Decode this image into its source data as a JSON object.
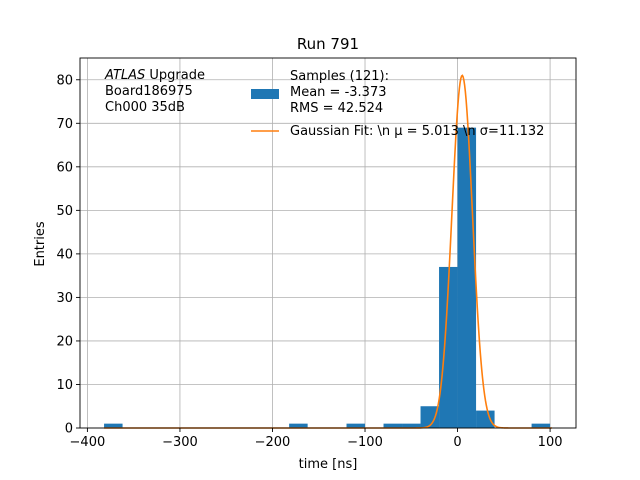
{
  "chart_data": {
    "type": "bar",
    "title": "Run 791",
    "xlabel": "time [ns]",
    "ylabel": "Entries",
    "xlim": [
      -408,
      128
    ],
    "ylim": [
      0,
      85
    ],
    "grid": true,
    "xticks": [
      -400,
      -300,
      -200,
      -100,
      0,
      100
    ],
    "xtick_labels": [
      "−400",
      "−300",
      "−200",
      "−100",
      "0",
      "100"
    ],
    "yticks": [
      0,
      10,
      20,
      30,
      40,
      50,
      60,
      70,
      80
    ],
    "histogram": {
      "name": "Samples",
      "color": "#1f77b4",
      "bins": [
        {
          "x0": -382,
          "x1": -362,
          "count": 1
        },
        {
          "x0": -182,
          "x1": -162,
          "count": 1
        },
        {
          "x0": -120,
          "x1": -100,
          "count": 1
        },
        {
          "x0": -80,
          "x1": -60,
          "count": 1
        },
        {
          "x0": -60,
          "x1": -40,
          "count": 1
        },
        {
          "x0": -40,
          "x1": -20,
          "count": 5
        },
        {
          "x0": -20,
          "x1": 0,
          "count": 37
        },
        {
          "x0": 0,
          "x1": 20,
          "count": 69
        },
        {
          "x0": 20,
          "x1": 40,
          "count": 4
        },
        {
          "x0": 80,
          "x1": 100,
          "count": 1
        }
      ]
    },
    "fit": {
      "type": "gaussian",
      "color": "#ff7f0e",
      "mu": 5.013,
      "sigma": 11.132,
      "amplitude": 81,
      "x_range": [
        -382,
        102
      ]
    },
    "legend": {
      "placement": "top-center",
      "hist_label": [
        "Samples (121):",
        " Mean = -3.373",
        " RMS = 42.524"
      ],
      "fit_label": "Gaussian Fit: \\n μ = 5.013 \\n σ=11.132"
    },
    "annotation": {
      "lines": [
        {
          "italic": "ATLAS",
          "rest": " Upgrade"
        },
        {
          "italic": "",
          "rest": " Board186975"
        },
        {
          "italic": "",
          "rest": " Ch000 35dB"
        }
      ]
    }
  }
}
